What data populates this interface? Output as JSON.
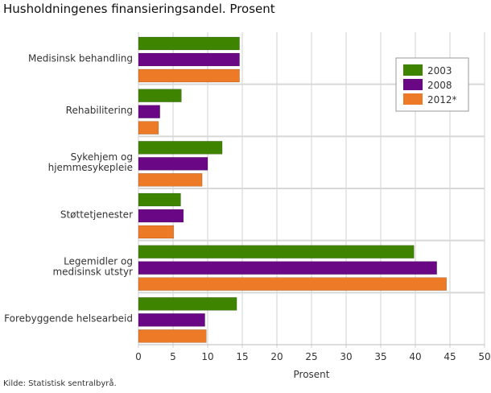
{
  "chart_data": {
    "type": "bar",
    "orientation": "horizontal",
    "title": "Husholdningenes finansieringsandel. Prosent",
    "xlabel": "Prosent",
    "ylabel": "",
    "xlim": [
      0,
      50
    ],
    "xticks": [
      "0",
      "5",
      "10",
      "15",
      "20",
      "25",
      "30",
      "35",
      "40",
      "45",
      "50"
    ],
    "grid": true,
    "legend_position": "top-right",
    "categories": [
      "Medisinsk behandling",
      "Rehabilitering",
      "Sykehjem og\nhjemmesykepleie",
      "Støttetjenester",
      "Legemidler og\nmedisinsk utstyr",
      "Forebyggende helsearbeid"
    ],
    "series": [
      {
        "name": "2003",
        "color": "#3f8400",
        "values": [
          14.6,
          6.2,
          12.1,
          6.1,
          39.8,
          14.2
        ]
      },
      {
        "name": "2008",
        "color": "#6a0784",
        "values": [
          14.6,
          3.1,
          10.0,
          6.5,
          43.1,
          9.6
        ]
      },
      {
        "name": "2012*",
        "color": "#ec7a26",
        "values": [
          14.6,
          2.9,
          9.2,
          5.1,
          44.5,
          9.8
        ]
      }
    ],
    "source": "Kilde: Statistisk sentralbyrå."
  }
}
